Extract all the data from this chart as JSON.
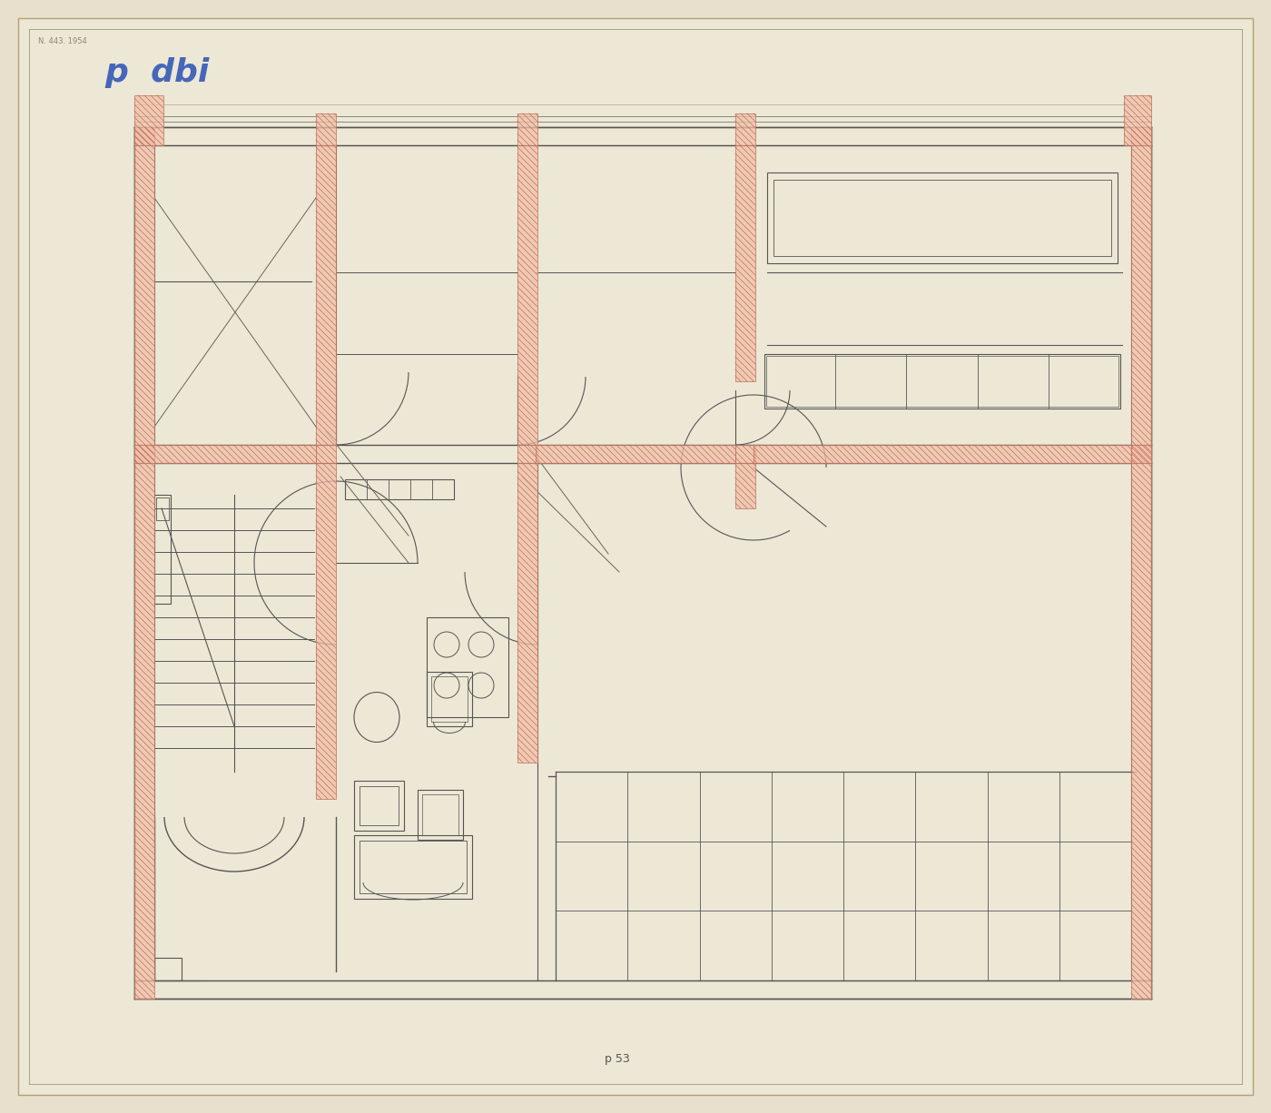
{
  "bg_color": "#e8e0cc",
  "paper_color": "#ede8d5",
  "wall_color": "#555555",
  "line_color": "#555555",
  "hatch_fill": "#f0c0a8",
  "hatch_line": "#c07060",
  "blue_text_color": "#4466bb",
  "title_text": "p  dbi",
  "bottom_text": "p 53",
  "top_small_text": "N. 443. 1954"
}
